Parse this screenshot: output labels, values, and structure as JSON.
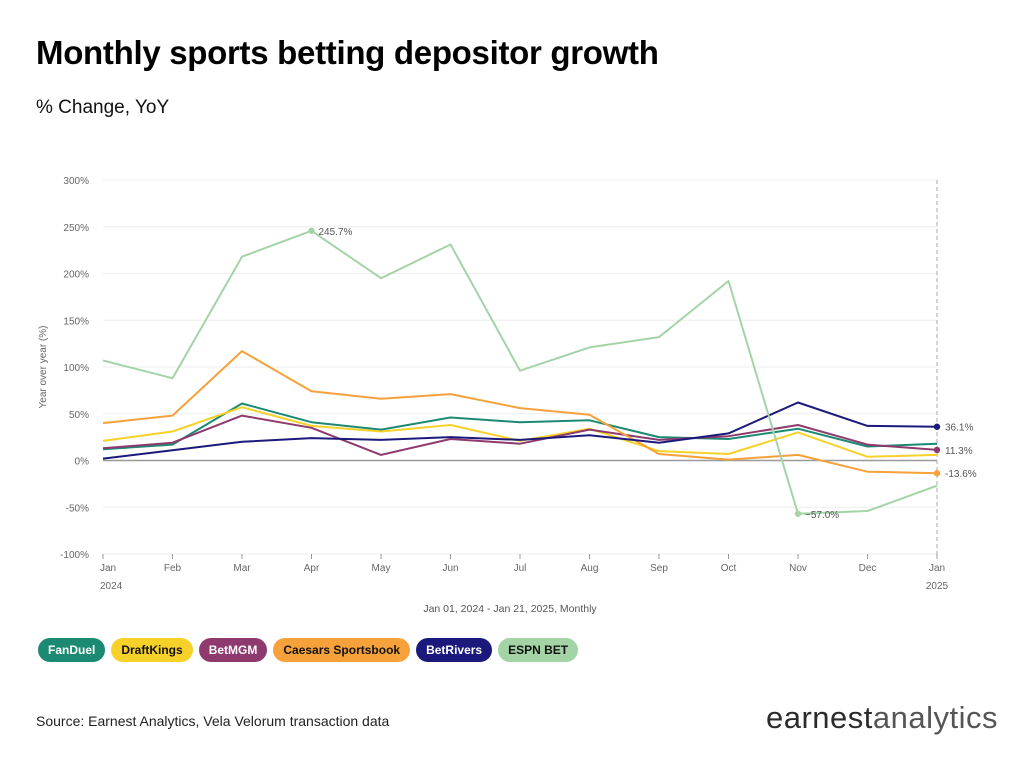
{
  "header": {
    "title": "Monthly sports betting depositor growth",
    "subtitle": "% Change, YoY"
  },
  "chart_data": {
    "type": "line",
    "ylabel": "Year over year (%)",
    "xlabel": "Jan 01, 2024 - Jan 21, 2025, Monthly",
    "ylim": [
      -100,
      300
    ],
    "yticks": [
      -100,
      -50,
      0,
      50,
      100,
      150,
      200,
      250,
      300
    ],
    "ytick_labels": [
      "-100%",
      "-50%",
      "0%",
      "50%",
      "100%",
      "150%",
      "200%",
      "250%",
      "300%"
    ],
    "categories": [
      "Jan",
      "Feb",
      "Mar",
      "Apr",
      "May",
      "Jun",
      "Jul",
      "Aug",
      "Sep",
      "Oct",
      "Nov",
      "Dec",
      "Jan"
    ],
    "category_sublabels": [
      "2024",
      "",
      "",
      "",
      "",
      "",
      "",
      "",
      "",
      "",
      "",
      "",
      "2025"
    ],
    "grid": "horizontal",
    "legend_position": "bottom-left",
    "series": [
      {
        "name": "FanDuel",
        "color": "#1c8a73",
        "values": [
          12,
          17,
          61,
          41,
          33,
          46,
          41,
          43,
          25,
          23,
          34,
          15,
          18
        ]
      },
      {
        "name": "DraftKings",
        "color": "#f6d12a",
        "values": [
          21,
          31,
          57,
          37,
          31,
          38,
          21,
          34,
          10,
          7,
          30,
          4,
          6
        ]
      },
      {
        "name": "BetMGM",
        "color": "#8e3a6e",
        "values": [
          13,
          19,
          48,
          35,
          6,
          23,
          18,
          33,
          22,
          26,
          38,
          17,
          11.3
        ]
      },
      {
        "name": "Caesars Sportsbook",
        "color": "#f6a13a",
        "values": [
          40,
          48,
          117,
          74,
          66,
          71,
          56,
          49,
          7,
          1,
          6,
          -12,
          -13.6
        ]
      },
      {
        "name": "BetRivers",
        "color": "#1b1a7c",
        "values": [
          2,
          11,
          20,
          24,
          22,
          25,
          22,
          27,
          19,
          29,
          62,
          37,
          36.1
        ]
      },
      {
        "name": "ESPN BET",
        "color": "#a4d4a6",
        "values": [
          107,
          88,
          218,
          245.7,
          195,
          231,
          96,
          121,
          132,
          192,
          -57.0,
          -54,
          -27
        ]
      }
    ],
    "annotations": [
      {
        "series": "ESPN BET",
        "index": 3,
        "label": "245.7%"
      },
      {
        "series": "ESPN BET",
        "index": 10,
        "label": "−57.0%"
      },
      {
        "series": "BetRivers",
        "index": 12,
        "label": "36.1%"
      },
      {
        "series": "BetMGM",
        "index": 12,
        "label": "11.3%"
      },
      {
        "series": "Caesars Sportsbook",
        "index": 12,
        "label": "-13.6%"
      }
    ]
  },
  "legend": {
    "items": [
      {
        "label": "FanDuel",
        "bg": "#1c8a73",
        "fg": "#ffffff"
      },
      {
        "label": "DraftKings",
        "bg": "#f6d12a",
        "fg": "#111111"
      },
      {
        "label": "BetMGM",
        "bg": "#8e3a6e",
        "fg": "#ffffff"
      },
      {
        "label": "Caesars Sportsbook",
        "bg": "#f6a13a",
        "fg": "#111111"
      },
      {
        "label": "BetRivers",
        "bg": "#1b1a7c",
        "fg": "#ffffff"
      },
      {
        "label": "ESPN BET",
        "bg": "#a4d4a6",
        "fg": "#111111"
      }
    ]
  },
  "footer": {
    "source": "Source: Earnest Analytics, Vela Velorum transaction data",
    "brand_part1": "earnest",
    "brand_part2": "analytics"
  }
}
